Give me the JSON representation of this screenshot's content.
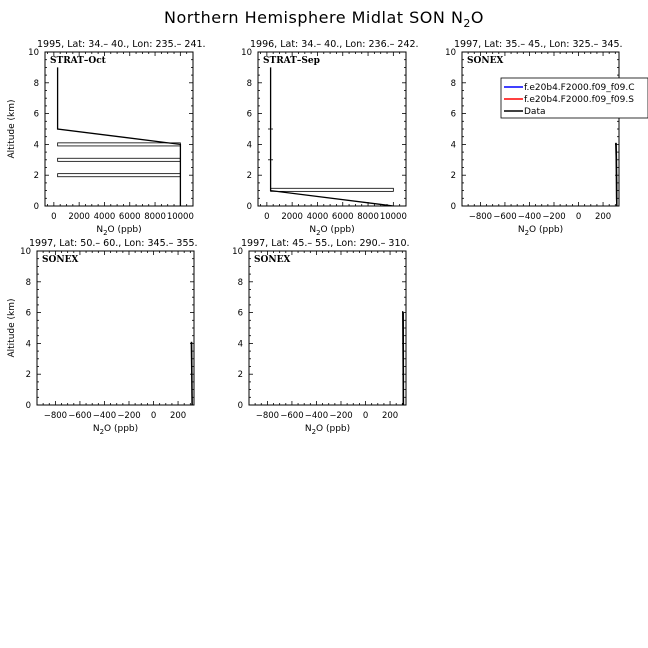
{
  "figure": {
    "title_main": "Northern Hemisphere Midlat SON N",
    "title_sub": "2",
    "title_end": "O"
  },
  "legend": {
    "entries": [
      {
        "label": "f.e20b4.F2000.f09_f09.C",
        "color": "#0000ff"
      },
      {
        "label": "f.e20b4.F2000.f09_f09.S",
        "color": "#ff0000"
      },
      {
        "label": "Data",
        "color": "#000000"
      }
    ]
  },
  "chart_data": [
    {
      "type": "line",
      "title": "1995, Lat: 34.– 40., Lon: 235.– 241.",
      "tag": "STRAT–Oct",
      "xlabel_pre": "N",
      "xlabel_sub": "2",
      "xlabel_post": "O (ppb)",
      "ylabel": "Altitude (km)",
      "xlim": [
        -700,
        11000
      ],
      "ylim": [
        0,
        10
      ],
      "xticks": [
        0,
        2000,
        4000,
        6000,
        8000,
        10000
      ],
      "xticklabels": [
        "0",
        "2000",
        "4000",
        "6000",
        "8000",
        "10000"
      ],
      "yticks": [
        0,
        2,
        4,
        6,
        8,
        10
      ],
      "series": [
        {
          "color": "#000000",
          "points": [
            [
              300,
              9
            ],
            [
              300,
              5
            ],
            [
              10000,
              4
            ],
            [
              10000,
              0
            ]
          ]
        }
      ],
      "boxes": [
        {
          "x": [
            300,
            10000
          ],
          "y": [
            3.9,
            4.1
          ]
        },
        {
          "x": [
            300,
            10000
          ],
          "y": [
            2.9,
            3.1
          ]
        },
        {
          "x": [
            300,
            10000
          ],
          "y": [
            1.9,
            2.1
          ]
        }
      ]
    },
    {
      "type": "line",
      "title": "1996, Lat: 34.– 40., Lon: 236.– 242.",
      "tag": "STRAT–Sep",
      "xlabel_pre": "N",
      "xlabel_sub": "2",
      "xlabel_post": "O (ppb)",
      "ylabel": "",
      "xlim": [
        -700,
        11000
      ],
      "ylim": [
        0,
        10
      ],
      "xticks": [
        0,
        2000,
        4000,
        6000,
        8000,
        10000
      ],
      "xticklabels": [
        "0",
        "2000",
        "4000",
        "6000",
        "8000",
        "10000"
      ],
      "yticks": [
        0,
        2,
        4,
        6,
        8,
        10
      ],
      "series": [
        {
          "color": "#000000",
          "points": [
            [
              300,
              9
            ],
            [
              300,
              1
            ],
            [
              10000,
              0
            ]
          ]
        }
      ],
      "boxes": [
        {
          "x": [
            300,
            10000
          ],
          "y": [
            0.95,
            1.15
          ]
        }
      ],
      "marks": [
        {
          "x": 250,
          "y": 5
        },
        {
          "x": 250,
          "y": 3
        }
      ]
    },
    {
      "type": "line",
      "title": "1997, Lat: 35.– 45., Lon: 325.– 345.",
      "tag": "SONEX",
      "xlabel_pre": "N",
      "xlabel_sub": "2",
      "xlabel_post": "O (ppb)",
      "ylabel": "",
      "xlim": [
        -950,
        330
      ],
      "ylim": [
        0,
        10
      ],
      "xticks": [
        -800,
        -600,
        -400,
        -200,
        0,
        200
      ],
      "xticklabels": [
        "−800",
        "−600",
        "−400",
        "−200",
        "0",
        "200"
      ],
      "yticks": [
        0,
        2,
        4,
        6,
        8,
        10
      ],
      "series": [
        {
          "color": "#000000",
          "points": [
            [
              303,
              4.1
            ],
            [
              306,
              3.2
            ],
            [
              308,
              2
            ],
            [
              310,
              0.5
            ],
            [
              312,
              0
            ]
          ]
        },
        {
          "color": "#000000",
          "points": [
            [
              307,
              4.1
            ],
            [
              310,
              3
            ],
            [
              312,
              1.5
            ],
            [
              313,
              0
            ]
          ]
        }
      ],
      "show_legend": true
    },
    {
      "type": "line",
      "title": "1997, Lat: 50.– 60., Lon: 345.– 355.",
      "tag": "SONEX",
      "xlabel_pre": "N",
      "xlabel_sub": "2",
      "xlabel_post": "O (ppb)",
      "ylabel": "Altitude (km)",
      "xlim": [
        -950,
        330
      ],
      "ylim": [
        0,
        10
      ],
      "xticks": [
        -800,
        -600,
        -400,
        -200,
        0,
        200
      ],
      "xticklabels": [
        "−800",
        "−600",
        "−400",
        "−200",
        "0",
        "200"
      ],
      "yticks": [
        0,
        2,
        4,
        6,
        8,
        10
      ],
      "series": [
        {
          "color": "#000000",
          "points": [
            [
              308,
              4.1
            ],
            [
              310,
              3
            ],
            [
              312,
              1.5
            ],
            [
              314,
              0
            ]
          ]
        },
        {
          "color": "#000000",
          "points": [
            [
              311,
              4.1
            ],
            [
              313,
              2.5
            ],
            [
              315,
              0
            ]
          ]
        }
      ]
    },
    {
      "type": "line",
      "title": "1997, Lat: 45.– 55., Lon: 290.– 310.",
      "tag": "SONEX",
      "xlabel_pre": "N",
      "xlabel_sub": "2",
      "xlabel_post": "O (ppb)",
      "ylabel": "",
      "xlim": [
        -950,
        330
      ],
      "ylim": [
        0,
        10
      ],
      "xticks": [
        -800,
        -600,
        -400,
        -200,
        0,
        200
      ],
      "xticklabels": [
        "−800",
        "−600",
        "−400",
        "−200",
        "0",
        "200"
      ],
      "yticks": [
        0,
        2,
        4,
        6,
        8,
        10
      ],
      "series": [
        {
          "color": "#000000",
          "points": [
            [
              303,
              6.1
            ],
            [
              305,
              4
            ],
            [
              306,
              2
            ],
            [
              307,
              0
            ]
          ]
        },
        {
          "color": "#000000",
          "points": [
            [
              308,
              6.0
            ],
            [
              309,
              3
            ],
            [
              310,
              0
            ]
          ]
        }
      ]
    }
  ]
}
